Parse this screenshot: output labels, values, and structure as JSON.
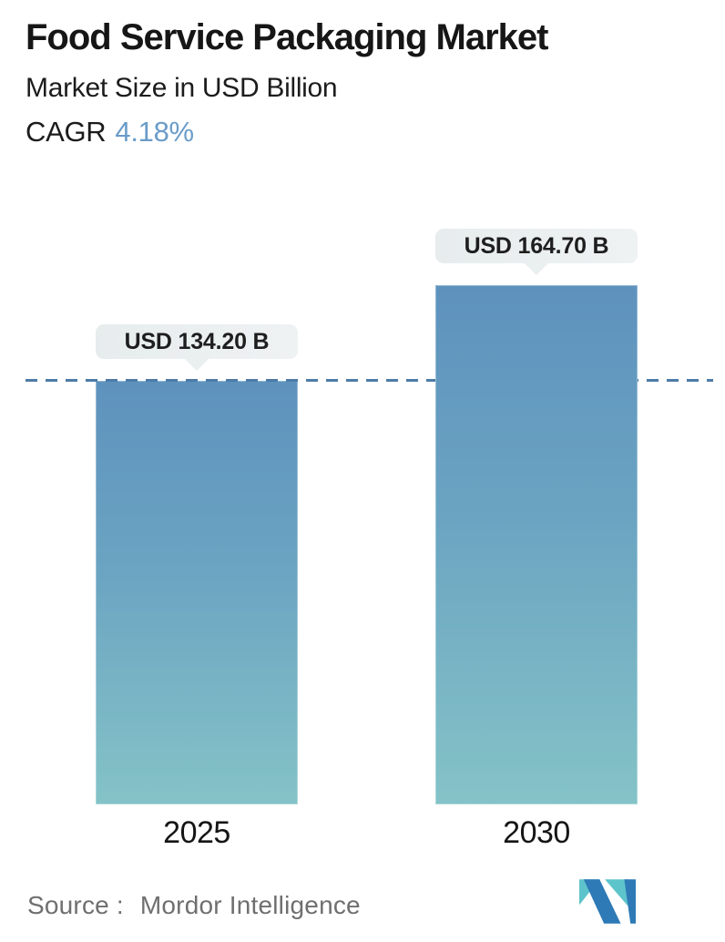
{
  "header": {
    "title": "Food Service Packaging Market",
    "subtitle": "Market Size in USD Billion",
    "cagr_label": "CAGR",
    "cagr_value": "4.18%"
  },
  "chart_data": {
    "type": "bar",
    "title": "Food Service Packaging Market",
    "subtitle": "Market Size in USD Billion",
    "unit": "USD Billion",
    "categories": [
      "2025",
      "2030"
    ],
    "values": [
      134.2,
      164.7
    ],
    "value_labels": [
      "USD 134.20 B",
      "USD 164.70 B"
    ],
    "cagr_percent": 4.18,
    "ylim": [
      0,
      180
    ],
    "grid": "off",
    "legend": "none",
    "reference_line": {
      "style": "dashed",
      "orientation": "horizontal",
      "at_value": 134.2,
      "color": "#4d7ba7"
    },
    "bar_colors": {
      "gradient_top": "#5e92bd",
      "gradient_bottom": "#84c3c7"
    },
    "label_pill_bg": "#e8edee"
  },
  "footer": {
    "source_label": "Source :",
    "source_value": "Mordor Intelligence",
    "logo": "mordor-intelligence-logo",
    "logo_colors": {
      "teal": "#5ec4cb",
      "blue": "#2d7ab6"
    }
  },
  "colors": {
    "accent_blue": "#6a9cc9",
    "dashed_line": "#4d7ba7",
    "source_text": "#6f6f6f",
    "title_text": "#161616"
  }
}
